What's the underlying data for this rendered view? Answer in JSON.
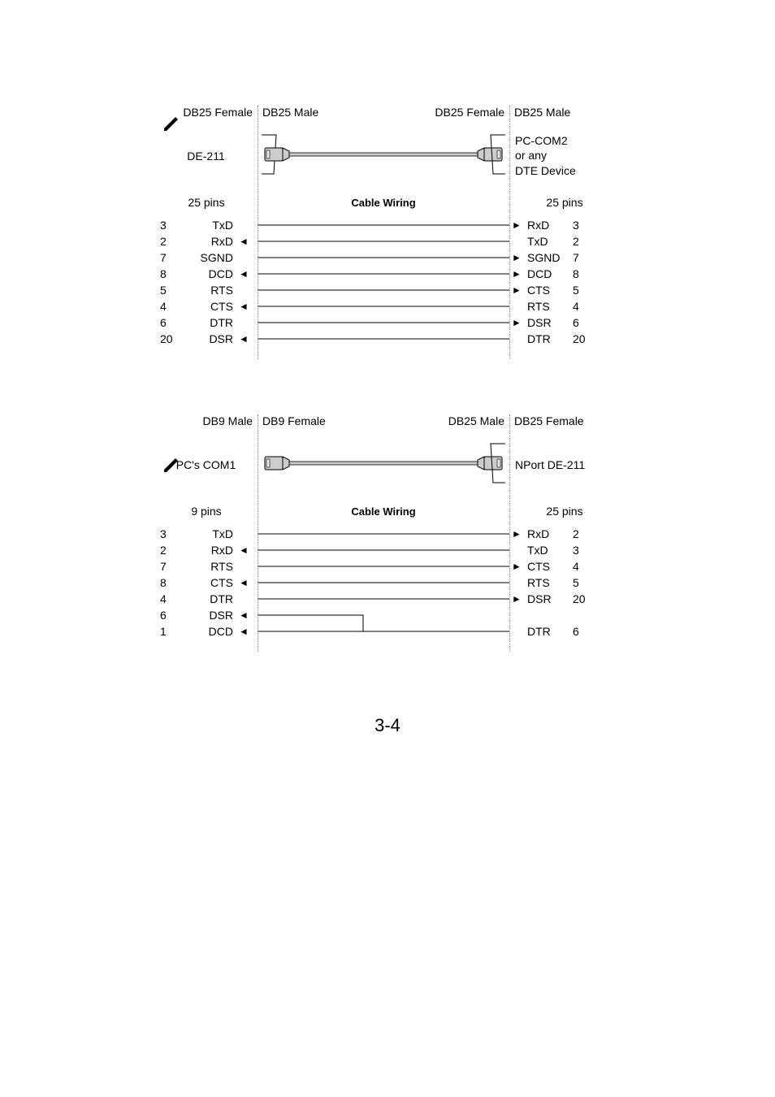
{
  "page_number": "3-4",
  "pencil_color": "#000000",
  "line_color": "#000000",
  "connector_fill": "#cccccc",
  "connector_inner": "#e8e8e8",
  "divider_color": "#888888",
  "diagram1": {
    "top_labels": {
      "a": "DB25 Female",
      "b": "DB25 Male",
      "c": "DB25 Female",
      "d": "DB25 Male"
    },
    "device_left": "DE-211",
    "device_right_line1": "PC-COM2",
    "device_right_line2": "or any",
    "device_right_line3": "DTE Device",
    "pin_count_left": "25 pins",
    "pin_count_right": "25 pins",
    "cable_wiring_label": "Cable Wiring",
    "left_pins": [
      {
        "n": "3",
        "s": "TxD",
        "dir": "out"
      },
      {
        "n": "2",
        "s": "RxD",
        "dir": "in"
      },
      {
        "n": "7",
        "s": "SGND",
        "dir": "out"
      },
      {
        "n": "8",
        "s": "DCD",
        "dir": "in"
      },
      {
        "n": "5",
        "s": "RTS",
        "dir": "out"
      },
      {
        "n": "4",
        "s": "CTS",
        "dir": "in"
      },
      {
        "n": "6",
        "s": "DTR",
        "dir": "out"
      },
      {
        "n": "20",
        "s": "DSR",
        "dir": "in"
      }
    ],
    "right_pins": [
      {
        "n": "3",
        "s": "RxD",
        "dir": "in"
      },
      {
        "n": "2",
        "s": "TxD",
        "dir": "out"
      },
      {
        "n": "7",
        "s": "SGND",
        "dir": "in"
      },
      {
        "n": "8",
        "s": "DCD",
        "dir": "in"
      },
      {
        "n": "5",
        "s": "CTS",
        "dir": "in"
      },
      {
        "n": "4",
        "s": "RTS",
        "dir": "out"
      },
      {
        "n": "6",
        "s": "DSR",
        "dir": "in"
      },
      {
        "n": "20",
        "s": "DTR",
        "dir": "out"
      }
    ]
  },
  "diagram2": {
    "top_labels": {
      "a": "DB9 Male",
      "b": "DB9 Female",
      "c": "DB25 Male",
      "d": "DB25 Female"
    },
    "device_left": "PC's COM1",
    "device_right": "NPort DE-211",
    "pin_count_left": "9 pins",
    "pin_count_right": "25 pins",
    "cable_wiring_label": "Cable Wiring",
    "left_pins": [
      {
        "n": "3",
        "s": "TxD",
        "dir": "out"
      },
      {
        "n": "2",
        "s": "RxD",
        "dir": "in"
      },
      {
        "n": "7",
        "s": "RTS",
        "dir": "out"
      },
      {
        "n": "8",
        "s": "CTS",
        "dir": "in"
      },
      {
        "n": "4",
        "s": "DTR",
        "dir": "out"
      },
      {
        "n": "6",
        "s": "DSR",
        "dir": "in"
      },
      {
        "n": "1",
        "s": "DCD",
        "dir": "in"
      }
    ],
    "right_pins": [
      {
        "n": "2",
        "s": "RxD",
        "dir": "in"
      },
      {
        "n": "3",
        "s": "TxD",
        "dir": "out"
      },
      {
        "n": "4",
        "s": "CTS",
        "dir": "in"
      },
      {
        "n": "5",
        "s": "RTS",
        "dir": "out"
      },
      {
        "n": "20",
        "s": "DSR",
        "dir": "in"
      },
      {
        "n": "",
        "s": "",
        "dir": ""
      },
      {
        "n": "6",
        "s": "DTR",
        "dir": "out"
      }
    ]
  }
}
